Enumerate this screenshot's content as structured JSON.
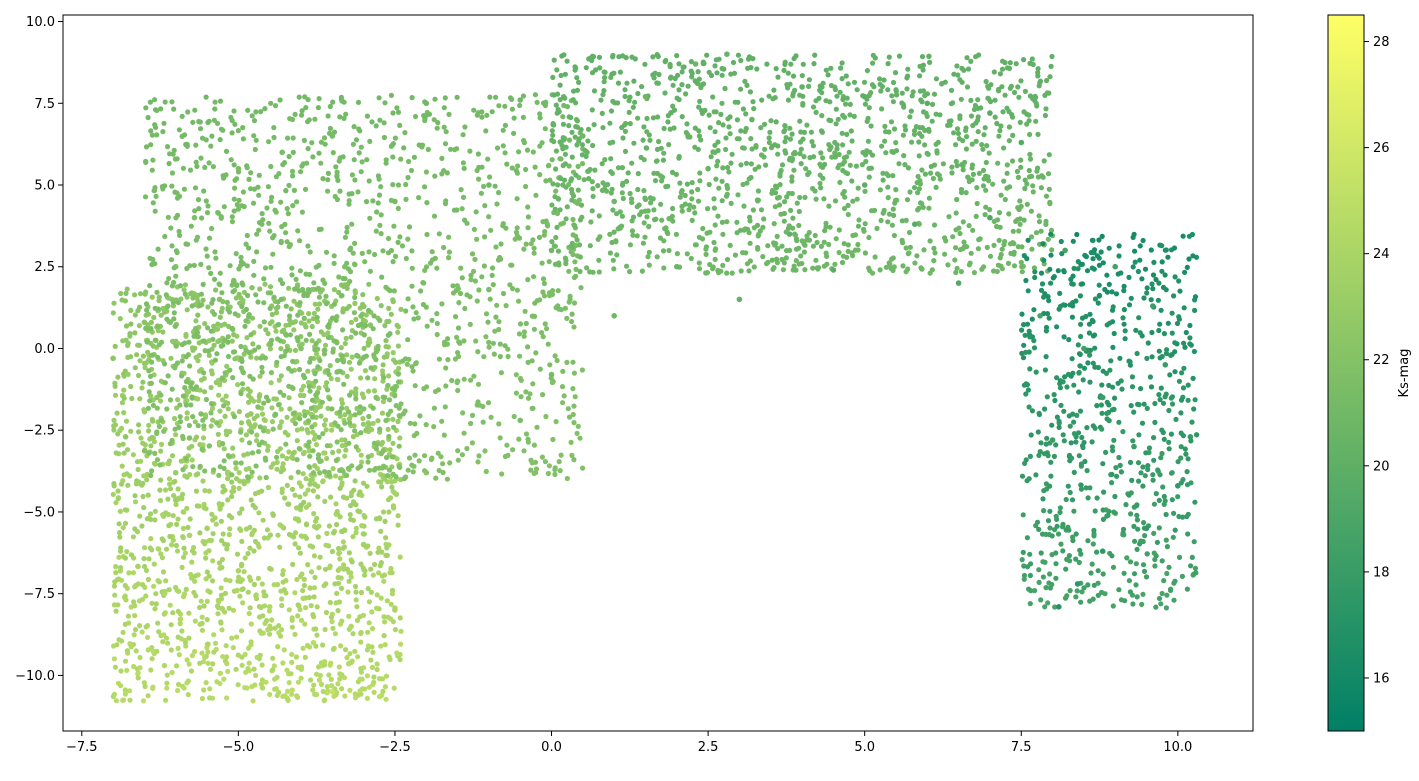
{
  "chart_data": {
    "type": "scatter",
    "title": "",
    "xlabel": "",
    "ylabel": "",
    "xlim": [
      -7.8,
      11.2
    ],
    "ylim": [
      -11.7,
      10.2
    ],
    "x_ticks": [
      -7.5,
      -5.0,
      -2.5,
      0.0,
      2.5,
      5.0,
      7.5,
      10.0
    ],
    "y_ticks": [
      -10.0,
      -7.5,
      -5.0,
      -2.5,
      0.0,
      2.5,
      5.0,
      7.5,
      10.0
    ],
    "x_tick_labels": [
      "−7.5",
      "−5.0",
      "−2.5",
      "0.0",
      "2.5",
      "5.0",
      "7.5",
      "10.0"
    ],
    "y_tick_labels": [
      "−10.0",
      "−7.5",
      "−5.0",
      "−2.5",
      "0.0",
      "2.5",
      "5.0",
      "7.5",
      "10.0"
    ],
    "grid": false,
    "colorbar": {
      "label": "Ks-mag",
      "min": 15.0,
      "max": 28.5,
      "ticks": [
        16,
        18,
        20,
        22,
        24,
        26,
        28
      ],
      "colormap": "summer",
      "color_low": "#008066",
      "color_high": "#ffff66"
    },
    "marker_color_rule": "color encodes Ks-mag",
    "approximate_density_regions": [
      {
        "x_range": [
          -7.0,
          -2.4
        ],
        "y_range": [
          -10.8,
          2.0
        ],
        "ks_mag_range": [
          22,
          25
        ],
        "density": "very high"
      },
      {
        "x_range": [
          -6.5,
          0.5
        ],
        "y_range": [
          -4.0,
          7.8
        ],
        "ks_mag_range": [
          21,
          22
        ],
        "density": "high"
      },
      {
        "x_range": [
          0.0,
          8.0
        ],
        "y_range": [
          2.3,
          9.0
        ],
        "ks_mag_range": [
          20,
          21
        ],
        "density": "high"
      },
      {
        "x_range": [
          7.5,
          10.3
        ],
        "y_range": [
          -8.0,
          3.5
        ],
        "ks_mag_range": [
          16,
          19
        ],
        "density": "medium"
      }
    ],
    "series": [
      {
        "name": "",
        "points": [
          [
            -7.0,
            -0.3,
            22.3
          ],
          [
            -6.8,
            -2.7,
            22.5
          ],
          [
            -6.5,
            0.8,
            22.2
          ],
          [
            -6.3,
            -1.5,
            22.6
          ],
          [
            -6.0,
            2.5,
            21.8
          ],
          [
            -6.0,
            -3.8,
            23.0
          ],
          [
            -5.7,
            4.0,
            21.6
          ],
          [
            -5.5,
            -5.5,
            23.6
          ],
          [
            -5.3,
            1.5,
            22.0
          ],
          [
            -5.0,
            -6.8,
            24.0
          ],
          [
            -5.0,
            5.5,
            21.5
          ],
          [
            -4.8,
            -2.0,
            22.8
          ],
          [
            -4.5,
            -7.9,
            24.4
          ],
          [
            -4.3,
            6.0,
            21.4
          ],
          [
            -4.0,
            0.0,
            22.0
          ],
          [
            -4.0,
            -4.8,
            23.0
          ],
          [
            -3.8,
            -9.0,
            24.8
          ],
          [
            -3.5,
            -10.5,
            25.5
          ],
          [
            -3.5,
            6.5,
            21.3
          ],
          [
            -3.3,
            2.5,
            21.7
          ],
          [
            -3.2,
            -8.5,
            24.5
          ],
          [
            -3.0,
            -6.0,
            23.5
          ],
          [
            -2.8,
            -1.5,
            22.0
          ],
          [
            -2.5,
            -8.0,
            24.0
          ],
          [
            -2.5,
            4.5,
            21.3
          ],
          [
            -2.0,
            7.5,
            21.0
          ],
          [
            -2.0,
            -3.8,
            22.2
          ],
          [
            -1.5,
            -1.0,
            21.8
          ],
          [
            -1.0,
            5.0,
            21.0
          ],
          [
            -1.0,
            1.8,
            21.5
          ],
          [
            -0.5,
            -2.2,
            21.5
          ],
          [
            -0.5,
            7.6,
            21.0
          ],
          [
            0.0,
            3.0,
            21.0
          ],
          [
            0.0,
            -0.8,
            21.3
          ],
          [
            0.5,
            6.5,
            20.8
          ],
          [
            1.0,
            1.0,
            21.0
          ],
          [
            1.0,
            4.5,
            20.8
          ],
          [
            1.5,
            7.7,
            20.7
          ],
          [
            2.0,
            2.5,
            20.6
          ],
          [
            2.3,
            8.7,
            20.6
          ],
          [
            2.5,
            5.5,
            20.5
          ],
          [
            2.8,
            9.0,
            20.5
          ],
          [
            3.0,
            1.5,
            20.3
          ],
          [
            3.2,
            7.0,
            20.4
          ],
          [
            3.8,
            3.5,
            20.1
          ],
          [
            4.0,
            8.0,
            20.2
          ],
          [
            4.5,
            2.4,
            19.8
          ],
          [
            5.0,
            5.0,
            19.9
          ],
          [
            5.0,
            7.7,
            20.0
          ],
          [
            5.8,
            3.8,
            19.5
          ],
          [
            6.0,
            7.5,
            19.8
          ],
          [
            6.5,
            2.0,
            19.3
          ],
          [
            7.0,
            4.0,
            19.1
          ],
          [
            7.0,
            7.2,
            19.6
          ],
          [
            7.5,
            6.3,
            19.4
          ],
          [
            7.8,
            1.0,
            18.7
          ],
          [
            8.2,
            3.0,
            18.6
          ],
          [
            8.5,
            0.0,
            18.5
          ],
          [
            8.0,
            -2.8,
            18.2
          ],
          [
            8.8,
            -1.5,
            18.3
          ],
          [
            9.0,
            2.5,
            18.5
          ],
          [
            9.3,
            -3.0,
            18.0
          ],
          [
            9.6,
            1.3,
            18.2
          ],
          [
            9.8,
            -0.5,
            18.0
          ],
          [
            10.2,
            -2.7,
            17.8
          ],
          [
            10.0,
            -4.2,
            17.7
          ],
          [
            9.5,
            -5.5,
            17.6
          ],
          [
            8.8,
            -6.2,
            17.5
          ],
          [
            8.4,
            -7.2,
            17.3
          ],
          [
            8.1,
            -7.9,
            17.0
          ]
        ]
      }
    ]
  }
}
